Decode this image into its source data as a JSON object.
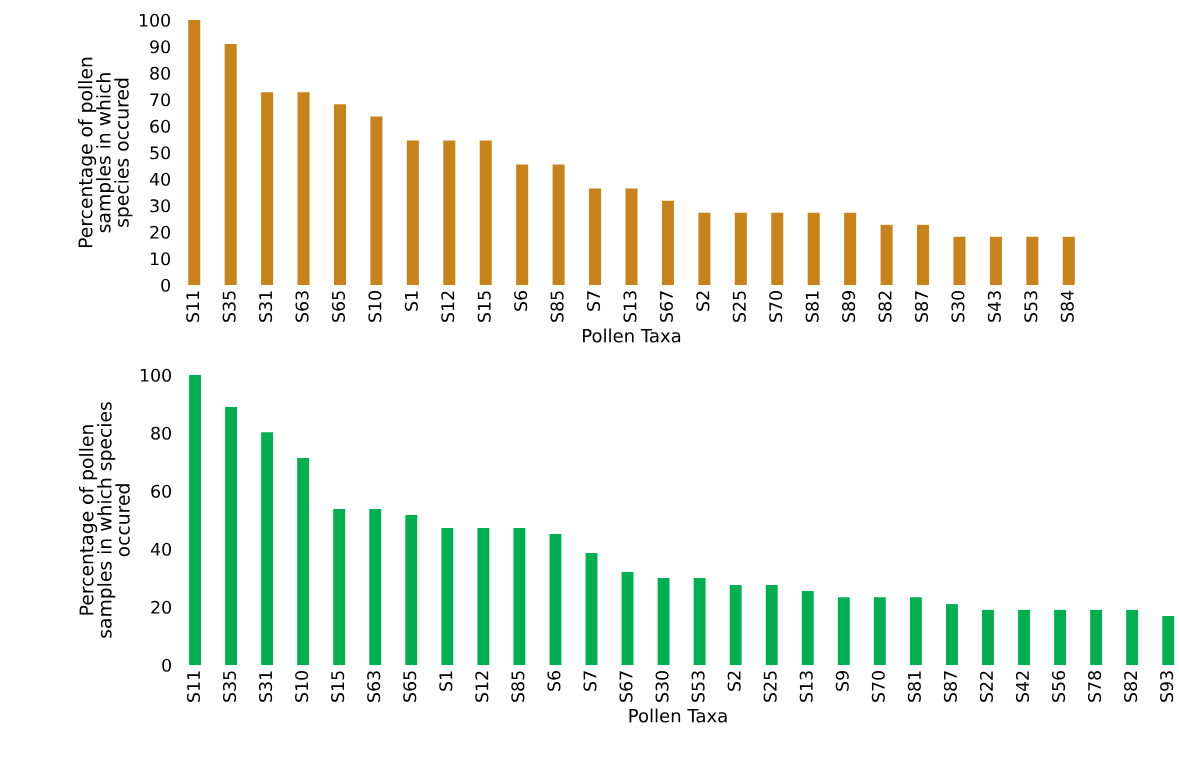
{
  "chart_data": [
    {
      "type": "bar",
      "xlabel": "Pollen Taxa",
      "ylabel": "Percentage of pollen\nsamples in which\nspecies occured",
      "categories": [
        "S11",
        "S35",
        "S31",
        "S63",
        "S65",
        "S10",
        "S1",
        "S12",
        "S15",
        "S6",
        "S85",
        "S7",
        "S13",
        "S67",
        "S2",
        "S25",
        "S70",
        "S81",
        "S89",
        "S82",
        "S87",
        "S30",
        "S43",
        "S53",
        "S84"
      ],
      "values": [
        100,
        90.9,
        72.7,
        72.7,
        68.2,
        63.6,
        54.5,
        54.5,
        54.5,
        45.5,
        45.5,
        36.4,
        36.4,
        31.8,
        27.3,
        27.3,
        27.3,
        27.3,
        27.3,
        22.7,
        22.7,
        18.2,
        18.2,
        18.2,
        18.2
      ],
      "color": "#c8821a",
      "ylim": [
        0,
        100
      ],
      "yticks": [
        0,
        10,
        20,
        30,
        40,
        50,
        60,
        70,
        80,
        90,
        100
      ],
      "grid": false,
      "legend": false
    },
    {
      "type": "bar",
      "xlabel": "Pollen Taxa",
      "ylabel": "Percentage of pollen\nsamples in which species\noccured",
      "categories": [
        "S11",
        "S35",
        "S31",
        "S10",
        "S15",
        "S63",
        "S65",
        "S1",
        "S12",
        "S85",
        "S6",
        "S7",
        "S67",
        "S30",
        "S53",
        "S2",
        "S25",
        "S13",
        "S9",
        "S70",
        "S81",
        "S87",
        "S22",
        "S42",
        "S56",
        "S78",
        "S82",
        "S93"
      ],
      "values": [
        100,
        89,
        80.3,
        71.4,
        53.8,
        53.8,
        51.7,
        47.2,
        47.2,
        47.2,
        45.2,
        38.6,
        32.1,
        30,
        30,
        27.6,
        27.6,
        25.5,
        23.4,
        23.4,
        23.4,
        21,
        19,
        19,
        19,
        19,
        19,
        16.9
      ],
      "color": "#00b050",
      "ylim": [
        0,
        100
      ],
      "yticks": [
        0,
        20,
        40,
        60,
        80,
        100
      ],
      "grid": false,
      "legend": false
    }
  ]
}
